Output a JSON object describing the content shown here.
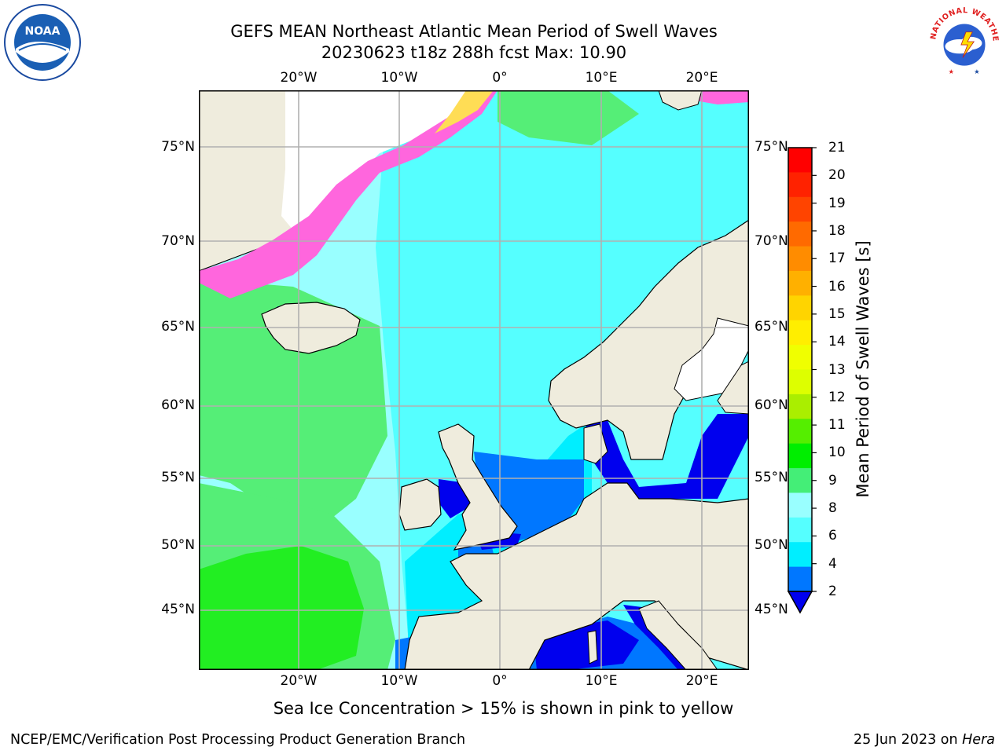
{
  "title": {
    "line1": "GEFS MEAN Northeast Atlantic Mean Period of Swell Waves",
    "line2": "20230623 t18z 288h fcst   Max: 10.90"
  },
  "logos": {
    "left": "NOAA",
    "right": "NATIONAL WEATHER SERVICE"
  },
  "map": {
    "lon_labels": [
      "20°W",
      "10°W",
      "0°",
      "10°E",
      "20°E"
    ],
    "lat_labels": [
      "75°N",
      "70°N",
      "65°N",
      "60°N",
      "55°N",
      "50°N",
      "45°N"
    ],
    "colors": {
      "ocean_green": "#55ee77",
      "ocean_bright_green": "#22ee22",
      "ocean_pale_cyan": "#99ffff",
      "ocean_cyan": "#44ffff",
      "ocean_bright_cyan": "#00eeff",
      "ocean_blue": "#0077ff",
      "ocean_dark_blue": "#0000ee",
      "ice_pink": "#ff66dd",
      "ice_yellow": "#ffdd55",
      "land": "#efecdd",
      "grid": "#b0b0b0"
    }
  },
  "colorbar": {
    "title": "Mean Period of Swell Waves [s]",
    "labels": [
      "21",
      "20",
      "19",
      "18",
      "17",
      "16",
      "15",
      "14",
      "13",
      "12",
      "11",
      "10",
      "9",
      "8",
      "6",
      "4",
      "2"
    ],
    "colors": [
      "#ff0000",
      "#ff2200",
      "#ff4400",
      "#ff6a00",
      "#ff8c00",
      "#ffb000",
      "#ffd400",
      "#ffee00",
      "#f0ff00",
      "#ddff00",
      "#aaee00",
      "#55ee00",
      "#00ee00",
      "#44ee77",
      "#99ffff",
      "#55ffff",
      "#00eeff",
      "#0077ff"
    ],
    "arrow_color": "#0000ee"
  },
  "caption": "Sea Ice Concentration > 15% is shown in pink to yellow",
  "footer": {
    "left": "NCEP/EMC/Verification Post Processing Product Generation Branch",
    "date": "25 Jun 2023 on ",
    "host": "Hera"
  }
}
